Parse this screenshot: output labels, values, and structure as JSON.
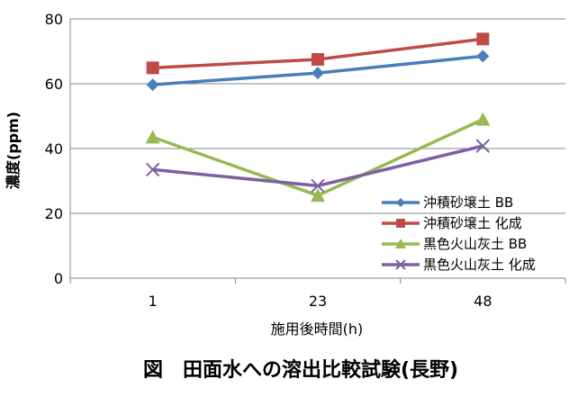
{
  "chart_data": {
    "type": "line",
    "categories": [
      "1",
      "23",
      "48"
    ],
    "xlabel": "施用後時間(h)",
    "ylabel": "濃度(ppm)",
    "ylim": [
      0,
      80
    ],
    "yticks": [
      "0",
      "20",
      "40",
      "60",
      "80"
    ],
    "grid": true,
    "legend_position": "right",
    "caption": "図　田面水への溶出比較試験(長野)",
    "series": [
      {
        "name": "沖積砂壌土 BB",
        "values": [
          59.7,
          63.3,
          68.5
        ],
        "color": "#4a7ebb",
        "marker": "diamond"
      },
      {
        "name": "沖積砂壌土 化成",
        "values": [
          64.9,
          67.5,
          73.8
        ],
        "color": "#be4b48",
        "marker": "square"
      },
      {
        "name": "黒色火山灰土 BB",
        "values": [
          43.5,
          25.5,
          49.0
        ],
        "color": "#98b954",
        "marker": "triangle"
      },
      {
        "name": "黒色火山灰土 化成",
        "values": [
          33.5,
          28.5,
          40.8
        ],
        "color": "#7d60a0",
        "marker": "x"
      }
    ]
  }
}
